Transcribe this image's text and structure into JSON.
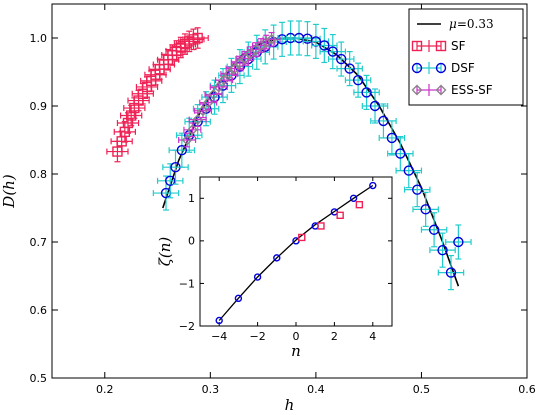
{
  "chart_data": [
    {
      "type": "scatter",
      "role": "main",
      "xlabel": "h",
      "ylabel": "D(h)",
      "xlim": [
        0.15,
        0.6
      ],
      "ylim": [
        0.5,
        1.05
      ],
      "xticks": [
        "0.2",
        "0.3",
        "0.4",
        "0.5",
        "0.6"
      ],
      "yticks": [
        "0.5",
        "0.6",
        "0.7",
        "0.8",
        "0.9",
        "1.0"
      ],
      "grid": false,
      "legend_position": "top-right",
      "series": [
        {
          "name": "μ = 0.33",
          "legend_parts": {
            "symbol": "μ",
            "value": "=0.33"
          },
          "kind": "line",
          "color": "#000000",
          "x": [
            0.255,
            0.27,
            0.29,
            0.31,
            0.33,
            0.35,
            0.37,
            0.38,
            0.4,
            0.42,
            0.44,
            0.46,
            0.48,
            0.5,
            0.52,
            0.535
          ],
          "y": [
            0.75,
            0.82,
            0.89,
            0.94,
            0.975,
            0.994,
            1.0,
            1.0,
            0.994,
            0.975,
            0.945,
            0.9,
            0.845,
            0.78,
            0.7,
            0.635
          ]
        },
        {
          "name": "SF",
          "kind": "markers",
          "marker": "square",
          "color": "#ee2255",
          "x": [
            0.212,
            0.216,
            0.219,
            0.222,
            0.225,
            0.228,
            0.232,
            0.236,
            0.24,
            0.244,
            0.248,
            0.252,
            0.256,
            0.26,
            0.264,
            0.268,
            0.272,
            0.276,
            0.28,
            0.284,
            0.288
          ],
          "y": [
            0.833,
            0.848,
            0.862,
            0.875,
            0.886,
            0.897,
            0.908,
            0.918,
            0.928,
            0.937,
            0.946,
            0.954,
            0.961,
            0.968,
            0.975,
            0.981,
            0.986,
            0.991,
            0.995,
            0.998,
            1.0
          ],
          "xerr": 0.01,
          "yerr": 0.015
        },
        {
          "name": "DSF",
          "kind": "markers",
          "marker": "circle",
          "color": "#0000dd",
          "errcolor": "#22cccc",
          "x": [
            0.258,
            0.262,
            0.267,
            0.273,
            0.28,
            0.288,
            0.296,
            0.304,
            0.312,
            0.32,
            0.328,
            0.336,
            0.344,
            0.352,
            0.36,
            0.368,
            0.376,
            0.384,
            0.392,
            0.4,
            0.408,
            0.416,
            0.424,
            0.432,
            0.44,
            0.448,
            0.456,
            0.464,
            0.472,
            0.48,
            0.488,
            0.496,
            0.504,
            0.512,
            0.52,
            0.528,
            0.535
          ],
          "y": [
            0.772,
            0.79,
            0.81,
            0.835,
            0.857,
            0.877,
            0.896,
            0.913,
            0.93,
            0.945,
            0.958,
            0.969,
            0.979,
            0.987,
            0.994,
            0.998,
            1.0,
            1.0,
            0.999,
            0.995,
            0.989,
            0.98,
            0.969,
            0.955,
            0.938,
            0.92,
            0.9,
            0.878,
            0.853,
            0.83,
            0.805,
            0.777,
            0.748,
            0.718,
            0.688,
            0.655,
            0.7
          ],
          "xerr": 0.012,
          "yerr": 0.025
        },
        {
          "name": "ESS-SF",
          "kind": "markers",
          "marker": "diamond",
          "color": "#888888",
          "errcolor": "#cc33cc",
          "x": [
            0.278,
            0.283,
            0.288,
            0.293,
            0.298,
            0.303,
            0.308,
            0.313,
            0.318,
            0.323,
            0.328,
            0.333,
            0.338,
            0.343,
            0.348,
            0.353,
            0.358
          ],
          "y": [
            0.85,
            0.865,
            0.88,
            0.893,
            0.905,
            0.917,
            0.928,
            0.938,
            0.947,
            0.955,
            0.963,
            0.97,
            0.977,
            0.983,
            0.989,
            0.994,
            0.998
          ],
          "xerr": 0.008,
          "yerr": 0.01
        }
      ]
    },
    {
      "type": "scatter",
      "role": "inset",
      "xlabel": "n",
      "ylabel": "ζ(n)",
      "xlim": [
        -5,
        5
      ],
      "ylim": [
        -2,
        1.5
      ],
      "xticks": [
        "−4",
        "−2",
        "0",
        "2",
        "4"
      ],
      "yticks": [
        "−2",
        "−1",
        "0",
        "1"
      ],
      "grid": false,
      "series": [
        {
          "kind": "line",
          "color": "#000000",
          "x": [
            -4,
            -3,
            -2,
            -1,
            0,
            1,
            2,
            3,
            4
          ],
          "y": [
            -1.87,
            -1.35,
            -0.85,
            -0.4,
            0.02,
            0.38,
            0.69,
            1.0,
            1.3
          ]
        },
        {
          "kind": "markers",
          "marker": "circle",
          "color": "#0000dd",
          "x": [
            -4,
            -3,
            -2,
            -1,
            0,
            1,
            2,
            3,
            4
          ],
          "y": [
            -1.87,
            -1.35,
            -0.85,
            -0.4,
            0.0,
            0.35,
            0.68,
            1.0,
            1.3
          ]
        },
        {
          "kind": "markers",
          "marker": "square",
          "color": "#ee2255",
          "x": [
            0.3,
            1.3,
            2.3,
            3.3
          ],
          "y": [
            0.08,
            0.35,
            0.6,
            0.85
          ]
        }
      ]
    }
  ]
}
